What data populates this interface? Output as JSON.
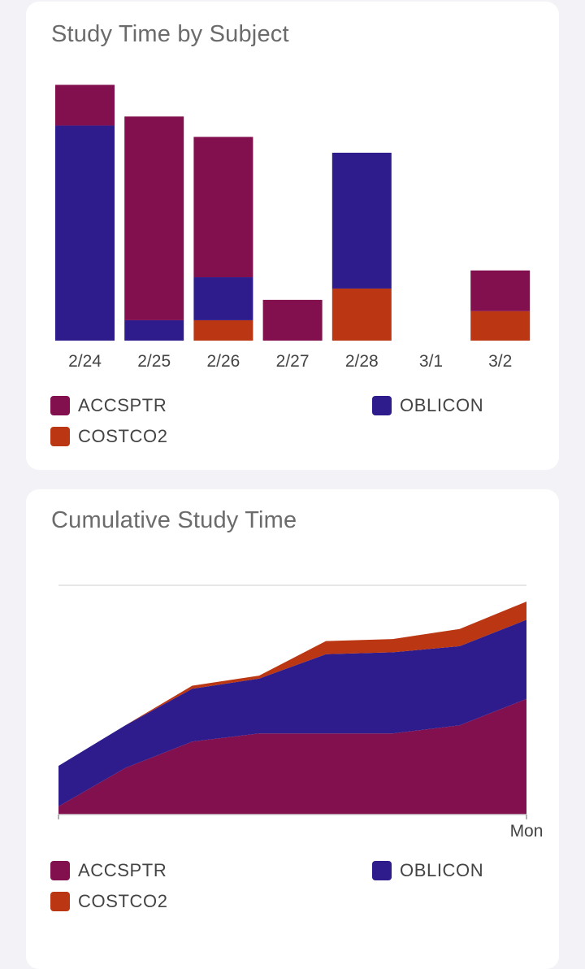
{
  "colors": {
    "ACCSPTR": "#820f4e",
    "OBLICON": "#2e1c8c",
    "COSTCO2": "#bb3612"
  },
  "bar_card": {
    "title": "Study Time by Subject",
    "legend": [
      "ACCSPTR",
      "OBLICON",
      "COSTCO2"
    ]
  },
  "area_card": {
    "title": "Cumulative Study Time",
    "x_tick": "Mon",
    "legend": [
      "ACCSPTR",
      "OBLICON",
      "COSTCO2"
    ]
  },
  "chart_data": [
    {
      "type": "bar",
      "stacked": true,
      "title": "Study Time by Subject",
      "categories": [
        "2/24",
        "2/25",
        "2/26",
        "2/27",
        "2/28",
        "3/1",
        "3/2"
      ],
      "series": [
        {
          "name": "COSTCO2",
          "values": [
            0,
            0,
            0.9,
            0,
            2.3,
            0,
            1.3
          ]
        },
        {
          "name": "OBLICON",
          "values": [
            9.5,
            0.9,
            1.9,
            0,
            6.0,
            0,
            0
          ]
        },
        {
          "name": "ACCSPTR",
          "values": [
            1.8,
            9.0,
            6.2,
            1.8,
            0,
            0,
            1.8
          ]
        }
      ],
      "ylim": [
        0,
        13
      ],
      "grid": false,
      "legend": "bottom"
    },
    {
      "type": "area",
      "stacked": true,
      "title": "Cumulative Study Time",
      "x_points": 8,
      "x_tick_labels": [
        "Mon"
      ],
      "series": [
        {
          "name": "ACCSPTR",
          "values": [
            0.4,
            2.3,
            3.6,
            4.0,
            4.0,
            4.0,
            4.4,
            5.7
          ]
        },
        {
          "name": "OBLICON",
          "values": [
            2.0,
            2.1,
            2.6,
            2.7,
            3.9,
            4.0,
            3.9,
            3.9
          ]
        },
        {
          "name": "COSTCO2",
          "values": [
            0,
            0,
            0.15,
            0.15,
            0.65,
            0.65,
            0.85,
            0.9
          ]
        }
      ],
      "ylim": [
        0,
        11.3
      ],
      "grid": false,
      "legend": "bottom"
    }
  ]
}
